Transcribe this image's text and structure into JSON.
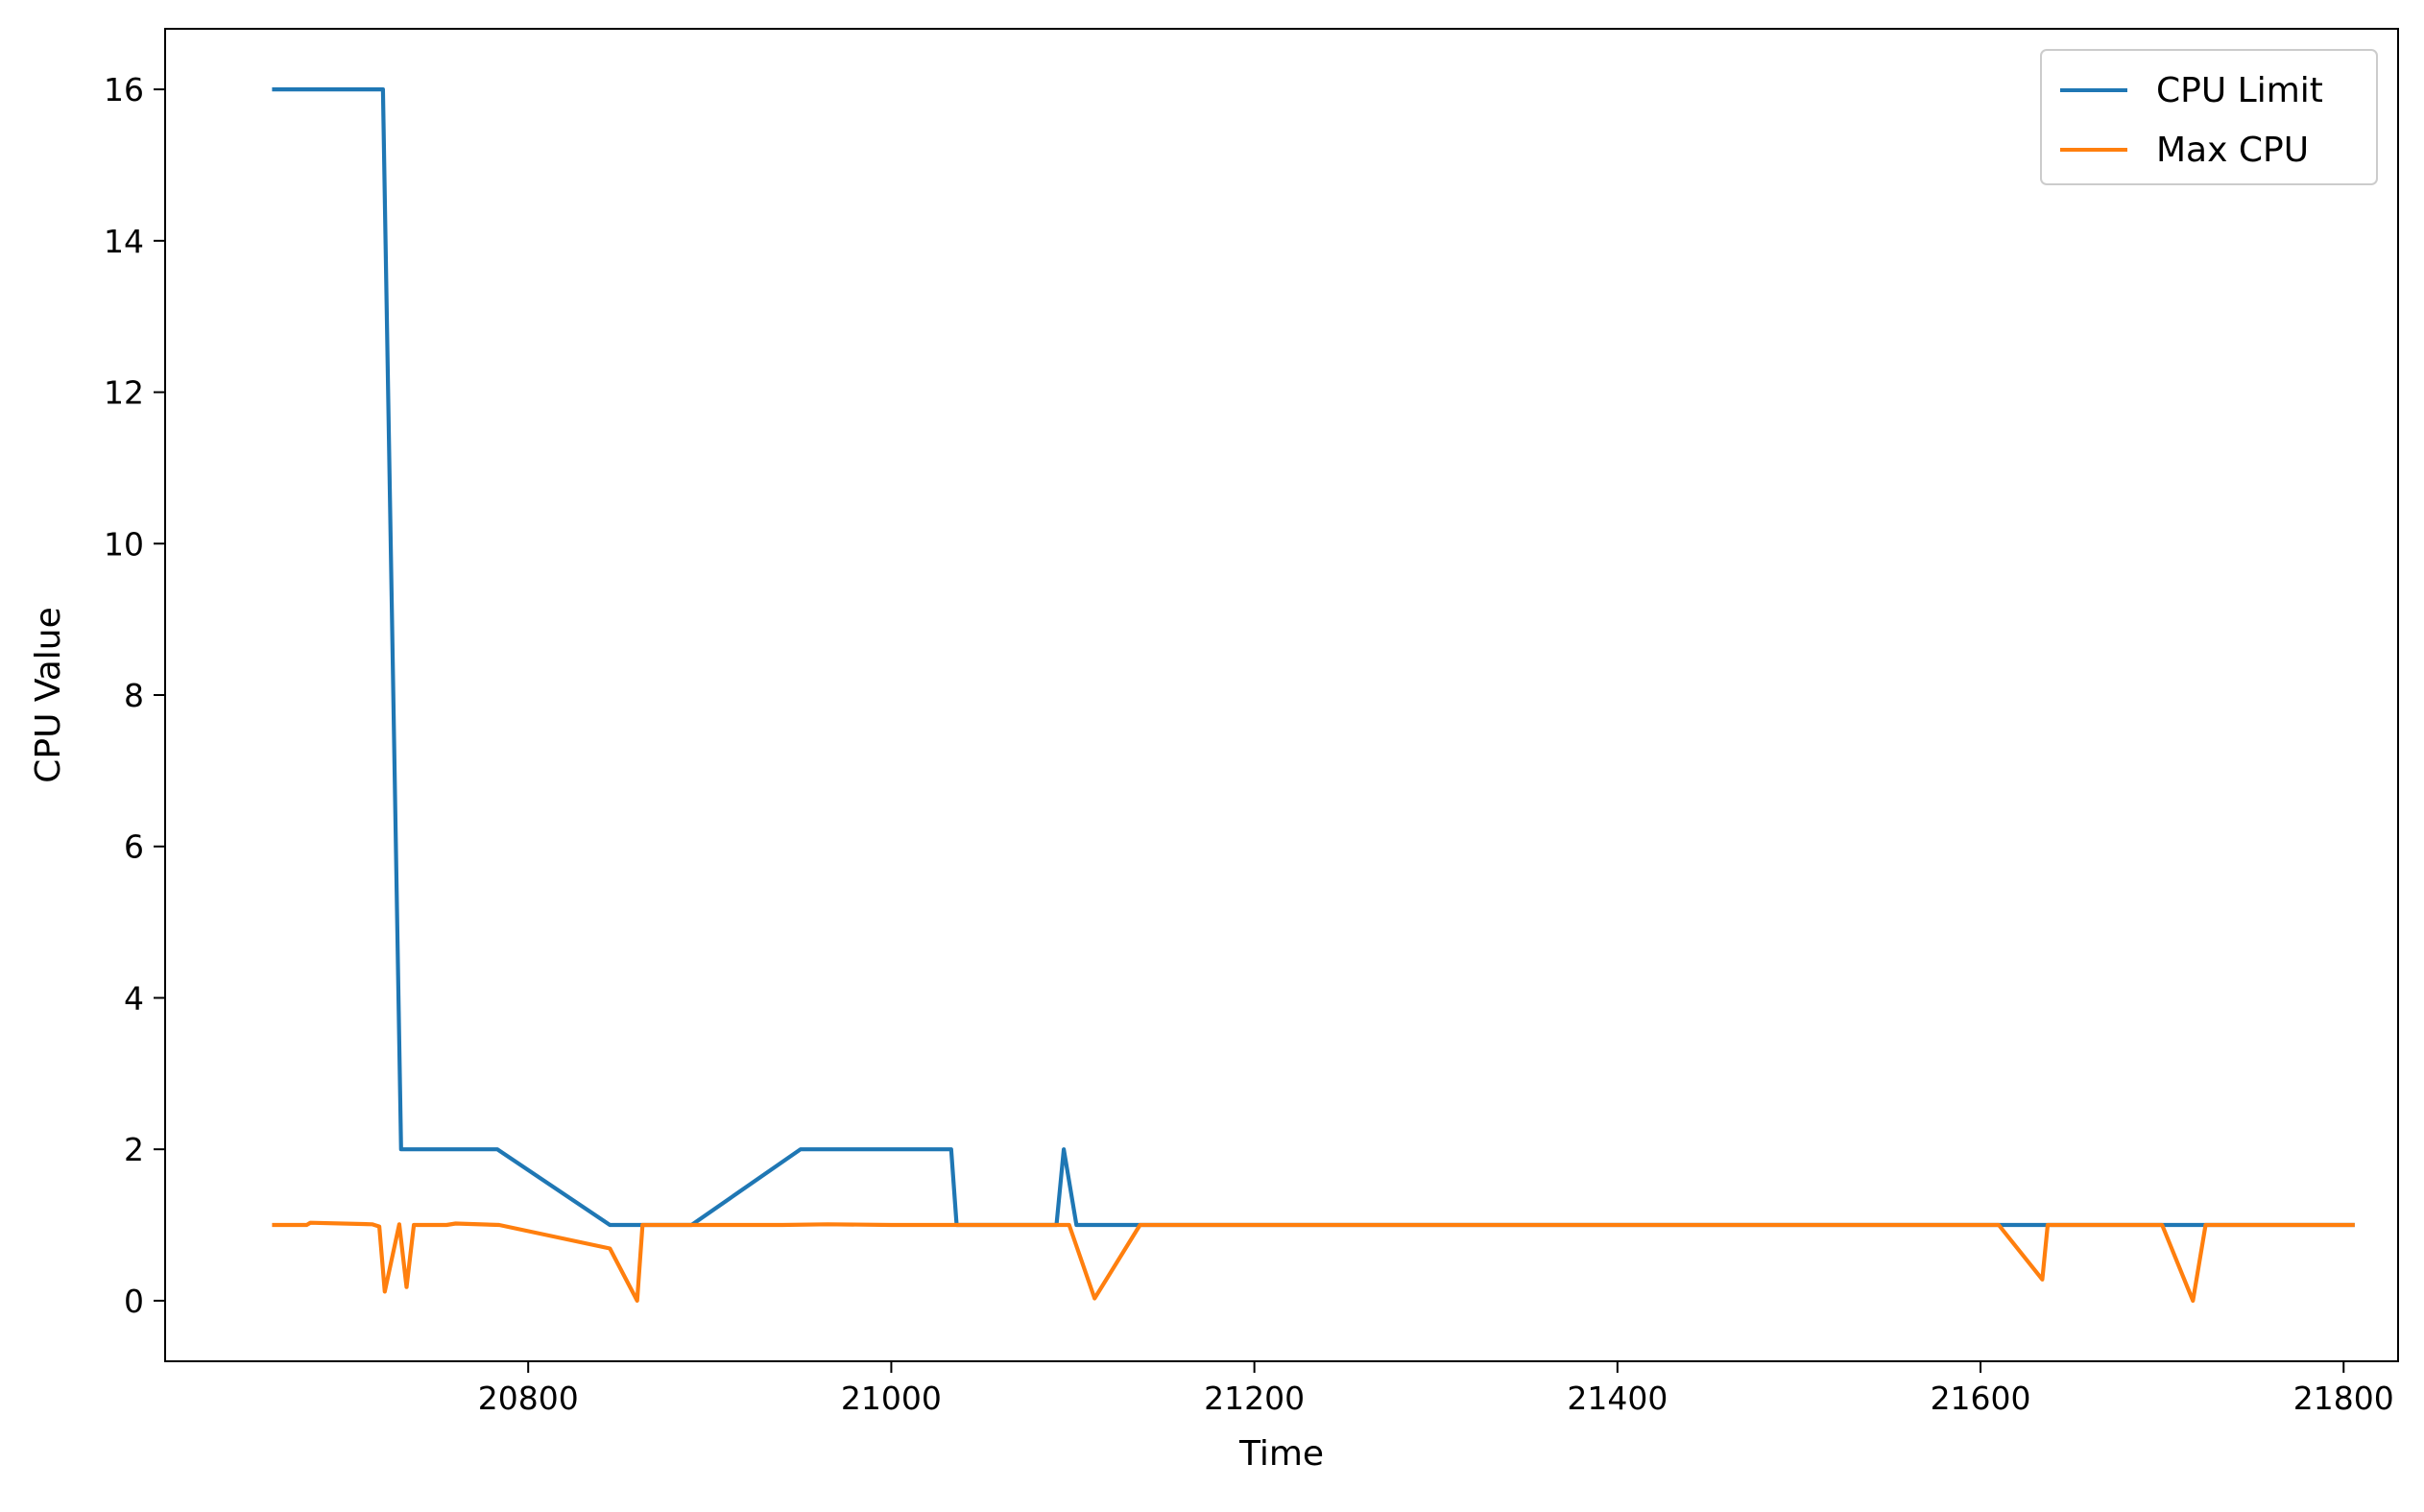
{
  "chart_data": {
    "type": "line",
    "title": "",
    "xlabel": "Time",
    "ylabel": "CPU Value",
    "xlim": [
      20600,
      21830
    ],
    "ylim": [
      -0.8,
      16.8
    ],
    "xticks": [
      20800,
      21000,
      21200,
      21400,
      21600,
      21800
    ],
    "yticks": [
      0,
      2,
      4,
      6,
      8,
      10,
      12,
      14,
      16
    ],
    "grid": false,
    "legend": {
      "placement": "top-right",
      "entries": [
        "CPU Limit",
        "Max CPU"
      ]
    },
    "series": [
      {
        "name": "CPU Limit",
        "color": "#1f77b4",
        "x": [
          20660,
          20720,
          20730,
          20783,
          20845,
          20890,
          20950,
          21033,
          21036,
          21091,
          21095,
          21102,
          21620,
          21640,
          21700,
          21730,
          21805
        ],
        "y": [
          16,
          16,
          2,
          2,
          1,
          1,
          2,
          2,
          1,
          1,
          2,
          1,
          1,
          1,
          1,
          1,
          1
        ]
      },
      {
        "name": "Max CPU",
        "color": "#ff7f0e",
        "x": [
          20660,
          20678,
          20680,
          20714,
          20718,
          20721,
          20729,
          20733,
          20737,
          20741,
          20755,
          20760,
          20784,
          20845,
          20860,
          20863,
          20870,
          20940,
          20965,
          21000,
          21030,
          21098,
          21112,
          21137,
          21610,
          21634,
          21637,
          21700,
          21717,
          21724,
          21805
        ],
        "y": [
          1,
          1,
          1.03,
          1.01,
          0.98,
          0.12,
          1.01,
          0.18,
          1.0,
          1.0,
          1.0,
          1.02,
          1.0,
          0.69,
          0.0,
          1.0,
          1.0,
          1.0,
          1.01,
          1.0,
          1.0,
          1.0,
          0.03,
          1.0,
          1.0,
          0.28,
          1.0,
          1.0,
          0.0,
          1.0,
          1.0
        ]
      }
    ]
  }
}
